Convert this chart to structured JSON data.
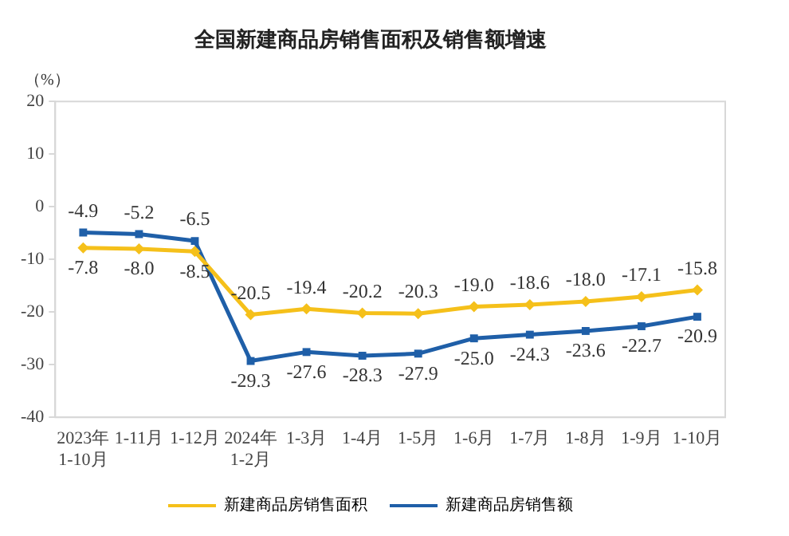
{
  "chart_data": {
    "type": "line",
    "title": "全国新建商品房销售面积及销售额增速",
    "ylabel": "（%）",
    "categories": [
      "2023年\n1-10月",
      "1-11月",
      "1-12月",
      "2024年\n1-2月",
      "1-3月",
      "1-4月",
      "1-5月",
      "1-6月",
      "1-7月",
      "1-8月",
      "1-9月",
      "1-10月"
    ],
    "series": [
      {
        "name": "新建商品房销售面积",
        "color": "#f5c01a",
        "marker": "diamond",
        "values": [
          -7.8,
          -8.0,
          -8.5,
          -20.5,
          -19.4,
          -20.2,
          -20.3,
          -19.0,
          -18.6,
          -18.0,
          -17.1,
          -15.8
        ],
        "value_labels": [
          "-7.8",
          "-8.0",
          "-8.5",
          "-20.5",
          "-19.4",
          "-20.2",
          "-20.3",
          "-19.0",
          "-18.6",
          "-18.0",
          "-17.1",
          "-15.8"
        ]
      },
      {
        "name": "新建商品房销售额",
        "color": "#1f5fa8",
        "marker": "square",
        "values": [
          -4.9,
          -5.2,
          -6.5,
          -29.3,
          -27.6,
          -28.3,
          -27.9,
          -25.0,
          -24.3,
          -23.6,
          -22.7,
          -20.9
        ],
        "value_labels": [
          "-4.9",
          "-5.2",
          "-6.5",
          "-29.3",
          "-27.6",
          "-28.3",
          "-27.9",
          "-25.0",
          "-24.3",
          "-23.6",
          "-22.7",
          "-20.9"
        ]
      }
    ],
    "ylim": [
      -40,
      20
    ],
    "yticks": [
      -40,
      -30,
      -20,
      -10,
      0,
      10,
      20
    ],
    "grid": false,
    "legend": "bottom",
    "line_style": "solid"
  }
}
